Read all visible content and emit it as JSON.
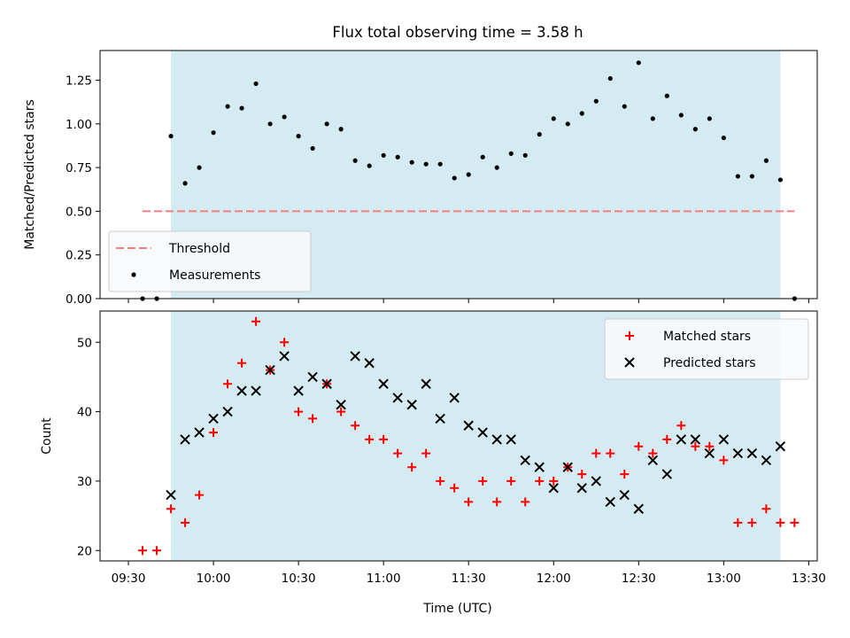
{
  "chart_data": {
    "type": "scatter",
    "title": "Flux total observing time = 3.58 h",
    "xlabel": "Time (UTC)",
    "x_unit": "hours UTC",
    "xlim": [
      "09:20",
      "13:33"
    ],
    "xticks": [
      "09:30",
      "10:00",
      "10:30",
      "11:00",
      "11:30",
      "12:00",
      "12:30",
      "13:00",
      "13:30"
    ],
    "shaded_region": {
      "from": "09:45",
      "to": "13:20",
      "color": "#d4ebf1"
    },
    "panels": [
      {
        "ylabel": "Matched/Predicted stars",
        "ylim": [
          0,
          1.42
        ],
        "yticks": [
          "0.00",
          "0.25",
          "0.50",
          "0.75",
          "1.00",
          "1.25"
        ],
        "legend": {
          "position": "lower-left",
          "entries": [
            "Threshold",
            "Measurements"
          ]
        },
        "threshold": {
          "name": "Threshold",
          "value": 0.5,
          "from": "09:35",
          "to": "13:25",
          "color": "#f08080",
          "style": "dashed"
        },
        "series": [
          {
            "name": "Measurements",
            "marker": "dot",
            "color": "#000000",
            "points": [
              [
                "09:35",
                0.0
              ],
              [
                "09:40",
                0.0
              ],
              [
                "09:45",
                0.93
              ],
              [
                "09:50",
                0.66
              ],
              [
                "09:55",
                0.75
              ],
              [
                "10:00",
                0.95
              ],
              [
                "10:05",
                1.1
              ],
              [
                "10:10",
                1.09
              ],
              [
                "10:15",
                1.23
              ],
              [
                "10:20",
                1.0
              ],
              [
                "10:25",
                1.04
              ],
              [
                "10:30",
                0.93
              ],
              [
                "10:35",
                0.86
              ],
              [
                "10:40",
                1.0
              ],
              [
                "10:45",
                0.97
              ],
              [
                "10:50",
                0.79
              ],
              [
                "10:55",
                0.76
              ],
              [
                "11:00",
                0.82
              ],
              [
                "11:05",
                0.81
              ],
              [
                "11:10",
                0.78
              ],
              [
                "11:15",
                0.77
              ],
              [
                "11:20",
                0.77
              ],
              [
                "11:25",
                0.69
              ],
              [
                "11:30",
                0.71
              ],
              [
                "11:35",
                0.81
              ],
              [
                "11:40",
                0.75
              ],
              [
                "11:45",
                0.83
              ],
              [
                "11:50",
                0.82
              ],
              [
                "11:55",
                0.94
              ],
              [
                "12:00",
                1.03
              ],
              [
                "12:05",
                1.0
              ],
              [
                "12:10",
                1.06
              ],
              [
                "12:15",
                1.13
              ],
              [
                "12:20",
                1.26
              ],
              [
                "12:25",
                1.1
              ],
              [
                "12:30",
                1.35
              ],
              [
                "12:35",
                1.03
              ],
              [
                "12:40",
                1.16
              ],
              [
                "12:45",
                1.05
              ],
              [
                "12:50",
                0.97
              ],
              [
                "12:55",
                1.03
              ],
              [
                "13:00",
                0.92
              ],
              [
                "13:05",
                0.7
              ],
              [
                "13:10",
                0.7
              ],
              [
                "13:15",
                0.79
              ],
              [
                "13:20",
                0.68
              ],
              [
                "13:25",
                0.0
              ]
            ]
          }
        ]
      },
      {
        "ylabel": "Count",
        "ylim": [
          18.5,
          54.5
        ],
        "yticks": [
          "20",
          "30",
          "40",
          "50"
        ],
        "legend": {
          "position": "top-right",
          "entries": [
            "Matched stars",
            "Predicted stars"
          ]
        },
        "series": [
          {
            "name": "Matched stars",
            "marker": "plus",
            "color": "#ff0000",
            "points": [
              [
                "09:35",
                20
              ],
              [
                "09:40",
                20
              ],
              [
                "09:45",
                26
              ],
              [
                "09:50",
                24
              ],
              [
                "09:55",
                28
              ],
              [
                "10:00",
                37
              ],
              [
                "10:05",
                44
              ],
              [
                "10:10",
                47
              ],
              [
                "10:15",
                53
              ],
              [
                "10:20",
                46
              ],
              [
                "10:25",
                50
              ],
              [
                "10:30",
                40
              ],
              [
                "10:35",
                39
              ],
              [
                "10:40",
                44
              ],
              [
                "10:45",
                40
              ],
              [
                "10:50",
                38
              ],
              [
                "10:55",
                36
              ],
              [
                "11:00",
                36
              ],
              [
                "11:05",
                34
              ],
              [
                "11:10",
                32
              ],
              [
                "11:15",
                34
              ],
              [
                "11:20",
                30
              ],
              [
                "11:25",
                29
              ],
              [
                "11:30",
                27
              ],
              [
                "11:35",
                30
              ],
              [
                "11:40",
                27
              ],
              [
                "11:45",
                30
              ],
              [
                "11:50",
                27
              ],
              [
                "11:55",
                30
              ],
              [
                "12:00",
                30
              ],
              [
                "12:05",
                32
              ],
              [
                "12:10",
                31
              ],
              [
                "12:15",
                34
              ],
              [
                "12:20",
                34
              ],
              [
                "12:25",
                31
              ],
              [
                "12:30",
                35
              ],
              [
                "12:35",
                34
              ],
              [
                "12:40",
                36
              ],
              [
                "12:45",
                38
              ],
              [
                "12:50",
                35
              ],
              [
                "12:55",
                35
              ],
              [
                "13:00",
                33
              ],
              [
                "13:05",
                24
              ],
              [
                "13:10",
                24
              ],
              [
                "13:15",
                26
              ],
              [
                "13:20",
                24
              ],
              [
                "13:25",
                24
              ]
            ]
          },
          {
            "name": "Predicted stars",
            "marker": "x",
            "color": "#000000",
            "points": [
              [
                "09:45",
                28
              ],
              [
                "09:50",
                36
              ],
              [
                "09:55",
                37
              ],
              [
                "10:00",
                39
              ],
              [
                "10:05",
                40
              ],
              [
                "10:10",
                43
              ],
              [
                "10:15",
                43
              ],
              [
                "10:20",
                46
              ],
              [
                "10:25",
                48
              ],
              [
                "10:30",
                43
              ],
              [
                "10:35",
                45
              ],
              [
                "10:40",
                44
              ],
              [
                "10:45",
                41
              ],
              [
                "10:50",
                48
              ],
              [
                "10:55",
                47
              ],
              [
                "11:00",
                44
              ],
              [
                "11:05",
                42
              ],
              [
                "11:10",
                41
              ],
              [
                "11:15",
                44
              ],
              [
                "11:20",
                39
              ],
              [
                "11:25",
                42
              ],
              [
                "11:30",
                38
              ],
              [
                "11:35",
                37
              ],
              [
                "11:40",
                36
              ],
              [
                "11:45",
                36
              ],
              [
                "11:50",
                33
              ],
              [
                "11:55",
                32
              ],
              [
                "12:00",
                29
              ],
              [
                "12:05",
                32
              ],
              [
                "12:10",
                29
              ],
              [
                "12:15",
                30
              ],
              [
                "12:20",
                27
              ],
              [
                "12:25",
                28
              ],
              [
                "12:30",
                26
              ],
              [
                "12:35",
                33
              ],
              [
                "12:40",
                31
              ],
              [
                "12:45",
                36
              ],
              [
                "12:50",
                36
              ],
              [
                "12:55",
                34
              ],
              [
                "13:00",
                36
              ],
              [
                "13:05",
                34
              ],
              [
                "13:10",
                34
              ],
              [
                "13:15",
                33
              ],
              [
                "13:20",
                35
              ]
            ]
          }
        ]
      }
    ]
  }
}
